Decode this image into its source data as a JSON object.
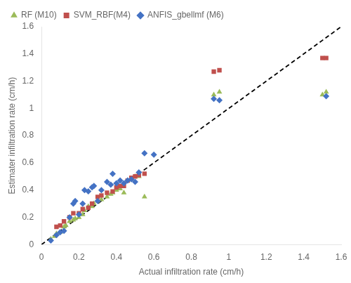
{
  "chart_data": {
    "type": "scatter",
    "xlabel": "Actual infiltration rate (cm/h)",
    "ylabel": "Estimater infiltration rate (cm/h)",
    "xlim": [
      0,
      1.6
    ],
    "ylim": [
      0,
      1.6
    ],
    "xticks": [
      0,
      0.2,
      0.4,
      0.6,
      0.8,
      1,
      1.2,
      1.4,
      1.6
    ],
    "yticks": [
      0,
      0.2,
      0.4,
      0.6,
      0.8,
      1,
      1.2,
      1.4,
      1.6
    ],
    "grid": false,
    "legend": "upper left",
    "series": [
      {
        "type": "line",
        "line_style": "dashed",
        "color": "#000000",
        "x": [
          0,
          1.6
        ],
        "values": [
          0,
          1.6
        ]
      },
      {
        "name": "RF (M10)",
        "marker": "triangle",
        "color": "#9BBB59",
        "x": [
          0.05,
          0.07,
          0.08,
          0.1,
          0.12,
          0.13,
          0.15,
          0.17,
          0.18,
          0.2,
          0.22,
          0.23,
          0.25,
          0.27,
          0.28,
          0.3,
          0.32,
          0.35,
          0.37,
          0.38,
          0.4,
          0.42,
          0.44,
          0.46,
          0.48,
          0.5,
          0.52,
          0.55,
          0.92,
          0.95,
          1.5,
          1.52
        ],
        "values": [
          0.04,
          0.06,
          0.08,
          0.09,
          0.13,
          0.14,
          0.17,
          0.18,
          0.19,
          0.2,
          0.22,
          0.25,
          0.28,
          0.28,
          0.3,
          0.32,
          0.33,
          0.35,
          0.37,
          0.38,
          0.4,
          0.41,
          0.38,
          0.47,
          0.48,
          0.5,
          0.5,
          0.35,
          1.1,
          1.12,
          1.1,
          1.12
        ]
      },
      {
        "name": "SVM_RBF(M4)",
        "marker": "square",
        "color": "#C0504D",
        "x": [
          0.08,
          0.1,
          0.12,
          0.15,
          0.17,
          0.2,
          0.22,
          0.25,
          0.27,
          0.3,
          0.32,
          0.35,
          0.38,
          0.4,
          0.42,
          0.44,
          0.46,
          0.48,
          0.5,
          0.52,
          0.55,
          0.92,
          0.95,
          1.5,
          1.52
        ],
        "values": [
          0.13,
          0.14,
          0.17,
          0.2,
          0.23,
          0.23,
          0.26,
          0.27,
          0.3,
          0.35,
          0.36,
          0.38,
          0.39,
          0.42,
          0.43,
          0.43,
          0.47,
          0.49,
          0.5,
          0.51,
          0.52,
          1.27,
          1.28,
          1.37,
          1.37
        ]
      },
      {
        "name": "ANFIS_gbellmf (M6)",
        "marker": "diamond",
        "color": "#4472C4",
        "x": [
          0.05,
          0.08,
          0.1,
          0.12,
          0.15,
          0.17,
          0.18,
          0.2,
          0.22,
          0.23,
          0.25,
          0.27,
          0.28,
          0.3,
          0.32,
          0.35,
          0.37,
          0.38,
          0.4,
          0.42,
          0.44,
          0.46,
          0.48,
          0.5,
          0.52,
          0.55,
          0.6,
          0.92,
          0.95,
          1.52
        ],
        "values": [
          0.03,
          0.07,
          0.09,
          0.1,
          0.2,
          0.3,
          0.32,
          0.22,
          0.3,
          0.4,
          0.39,
          0.42,
          0.43,
          0.32,
          0.4,
          0.46,
          0.44,
          0.52,
          0.45,
          0.47,
          0.45,
          0.47,
          0.48,
          0.46,
          0.53,
          0.67,
          0.66,
          1.07,
          1.06,
          1.09
        ]
      }
    ]
  }
}
